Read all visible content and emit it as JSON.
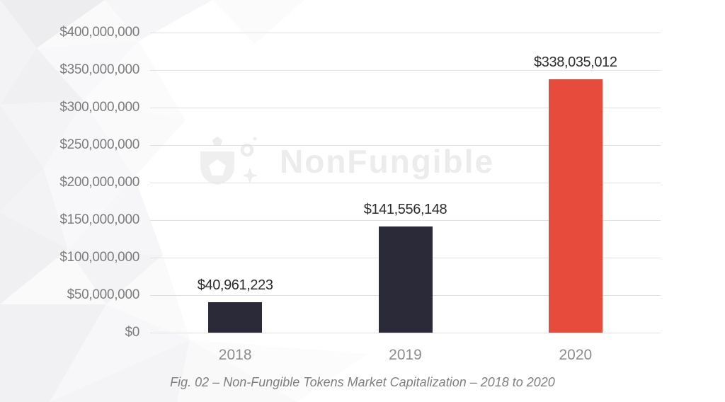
{
  "watermark": {
    "text": "NonFungible"
  },
  "chart_data": {
    "type": "bar",
    "title": "",
    "caption": "Fig. 02 – Non-Fungible Tokens Market Capitalization – 2018 to 2020",
    "categories": [
      "2018",
      "2019",
      "2020"
    ],
    "values": [
      40961223,
      141556148,
      338035012
    ],
    "value_labels": [
      "$40,961,223",
      "$141,556,148",
      "$338,035,012"
    ],
    "bar_colors": [
      "#2b2a38",
      "#2b2a38",
      "#e74b3c"
    ],
    "y_axis": {
      "tick_values": [
        0,
        50000000,
        100000000,
        150000000,
        200000000,
        250000000,
        300000000,
        350000000,
        400000000
      ],
      "tick_labels": [
        "$0",
        "$50,000,000",
        "$100,000,000",
        "$150,000,000",
        "$200,000,000",
        "$250,000,000",
        "$300,000,000",
        "$350,000,000",
        "$400,000,000"
      ]
    },
    "ylim": [
      0,
      400000000
    ],
    "grid": true,
    "legend": false,
    "colors": {
      "gridline": "#e0e0e0",
      "tick_text": "#7c7c7c",
      "category_text": "#8c8c8c",
      "value_text": "#2d2d2d",
      "caption_text": "#7f7f7f",
      "watermark_text": "#ececec",
      "bar_dark": "#2b2a38",
      "bar_accent": "#e74b3c"
    }
  }
}
